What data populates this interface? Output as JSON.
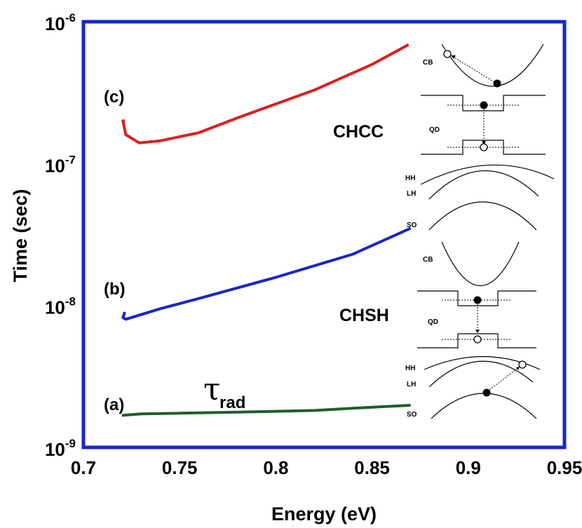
{
  "chart_data": {
    "type": "line",
    "xlabel": "Energy (eV)",
    "ylabel": "Time (sec)",
    "xlim": [
      0.7,
      0.95
    ],
    "ylim": [
      1e-09,
      1e-06
    ],
    "yscale": "log",
    "x_ticks": [
      "0.7",
      "0.75",
      "0.8",
      "0.85",
      "0.9",
      "0.95"
    ],
    "y_ticks": [
      {
        "base": "10",
        "exp": "-9"
      },
      {
        "base": "10",
        "exp": "-8"
      },
      {
        "base": "10",
        "exp": "-7"
      },
      {
        "base": "10",
        "exp": "-6"
      }
    ],
    "colors": {
      "a": "#1f5f2a",
      "b": "#1a25c8",
      "c": "#dc1f1f",
      "frame": "#1a25c8"
    },
    "series": [
      {
        "key": "a",
        "label": "(a)",
        "points": [
          [
            0.72,
            1.68e-09
          ],
          [
            0.73,
            1.72e-09
          ],
          [
            0.75,
            1.74e-09
          ],
          [
            0.78,
            1.77e-09
          ],
          [
            0.82,
            1.82e-09
          ],
          [
            0.85,
            1.92e-09
          ],
          [
            0.87,
            1.98e-09
          ]
        ]
      },
      {
        "key": "b",
        "label": "(b)",
        "points": [
          [
            0.7215,
            9e-09
          ],
          [
            0.7205,
            8.2e-09
          ],
          [
            0.722,
            8e-09
          ],
          [
            0.74,
            9.5e-09
          ],
          [
            0.76,
            1.12e-08
          ],
          [
            0.8,
            1.58e-08
          ],
          [
            0.84,
            2.3e-08
          ],
          [
            0.87,
            3.5e-08
          ]
        ]
      },
      {
        "key": "c",
        "label": "(c)",
        "points": [
          [
            0.7215,
            2e-07
          ],
          [
            0.7205,
            2e-07
          ],
          [
            0.722,
            1.6e-07
          ],
          [
            0.729,
            1.4e-07
          ],
          [
            0.74,
            1.45e-07
          ],
          [
            0.76,
            1.65e-07
          ],
          [
            0.78,
            2.1e-07
          ],
          [
            0.82,
            3.3e-07
          ],
          [
            0.85,
            5e-07
          ],
          [
            0.869,
            6.9e-07
          ]
        ]
      }
    ],
    "annotations": {
      "tau": "τ",
      "tau_sub": "rad",
      "chcc": "CHCC",
      "chsh": "CHSH"
    }
  },
  "schematic_labels": {
    "cb": "CB",
    "qd": "QD",
    "hh": "HH",
    "lh": "LH",
    "so": "SO"
  }
}
